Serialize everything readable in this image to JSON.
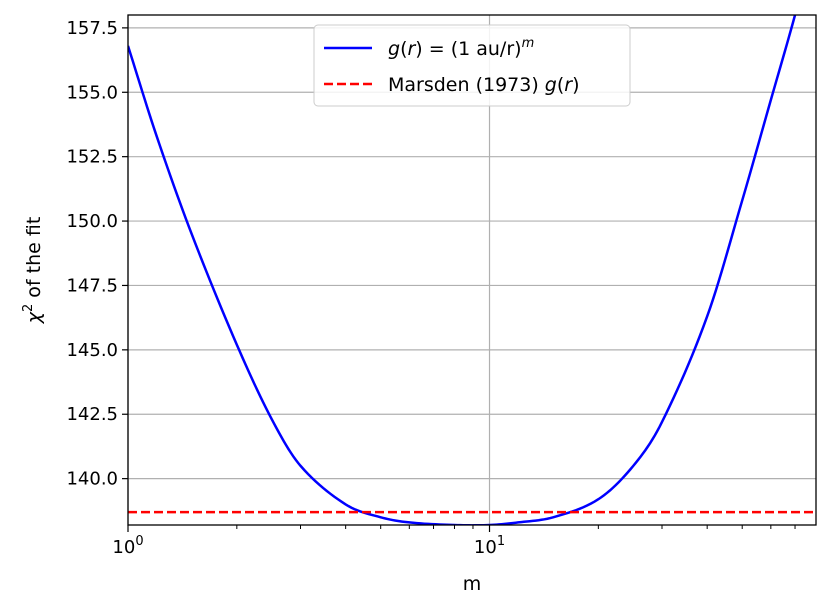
{
  "chart_data": {
    "type": "line",
    "title": "",
    "xlabel": "m",
    "ylabel_base": "χ",
    "ylabel_sup": "2",
    "ylabel_rest": " of the fit",
    "xscale": "log",
    "xlim": [
      1,
      80
    ],
    "ylim": [
      138.2,
      158.0
    ],
    "x_ticks": [
      {
        "value": 1,
        "base": "10",
        "exp": "0"
      },
      {
        "value": 10,
        "base": "10",
        "exp": "1"
      }
    ],
    "y_ticks": [
      {
        "value": 140.0,
        "label": "140.0"
      },
      {
        "value": 142.5,
        "label": "142.5"
      },
      {
        "value": 145.0,
        "label": "145.0"
      },
      {
        "value": 147.5,
        "label": "147.5"
      },
      {
        "value": 150.0,
        "label": "150.0"
      },
      {
        "value": 152.5,
        "label": "152.5"
      },
      {
        "value": 155.0,
        "label": "155.0"
      },
      {
        "value": 157.5,
        "label": "157.5"
      }
    ],
    "grid": true,
    "legend_position": "top-center",
    "series": [
      {
        "name": "g(r) = (1 au/r)^m",
        "legend_parts": [
          "g",
          "(",
          "r",
          ") = (1 au/r)",
          "m"
        ],
        "color": "#0000ff",
        "style": "solid",
        "x": [
          1.0,
          1.2,
          1.5,
          2.0,
          2.5,
          3.0,
          4.0,
          5.0,
          6.0,
          8.0,
          10.0,
          12.0,
          15.0,
          20.0,
          25.0,
          30.0,
          40.0,
          50.0,
          60.0,
          70.0,
          75.0
        ],
        "y": [
          156.8,
          153.3,
          149.5,
          145.2,
          142.3,
          140.5,
          139.0,
          138.5,
          138.3,
          138.2,
          138.2,
          138.3,
          138.5,
          139.2,
          140.5,
          142.2,
          146.3,
          150.8,
          154.7,
          158.0,
          159.7
        ]
      },
      {
        "name": "Marsden (1973) g(r)",
        "legend_parts": [
          "Marsden (1973) ",
          "g",
          "(",
          "r",
          ")"
        ],
        "color": "#ff0000",
        "style": "dashed",
        "x": [
          1,
          80
        ],
        "y": [
          138.7,
          138.7
        ]
      }
    ]
  }
}
